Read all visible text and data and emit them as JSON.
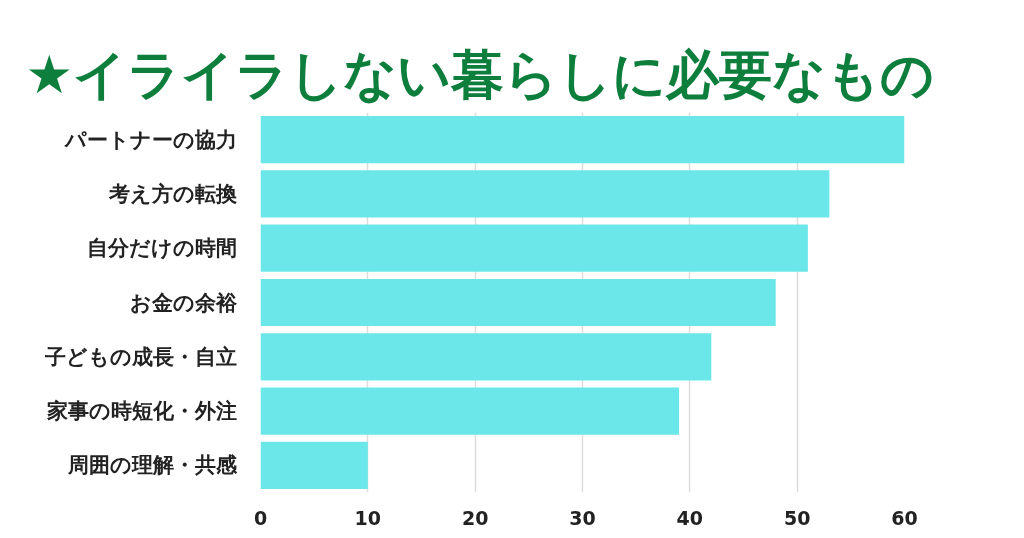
{
  "chart_data": {
    "type": "bar",
    "orientation": "horizontal",
    "title": "★イライラしない暮らしに必要なもの",
    "categories": [
      "パートナーの協力",
      "考え方の転換",
      "自分だけの時間",
      "お金の余裕",
      "子どもの成長・自立",
      "家事の時短化・外注",
      "周囲の理解・共感"
    ],
    "values": [
      60,
      53,
      51,
      48,
      42,
      39,
      10
    ],
    "color": "#6be6e9",
    "xlim": [
      0,
      60
    ],
    "xticks": [
      0,
      10,
      20,
      30,
      40,
      50,
      60
    ],
    "grid": "x"
  }
}
